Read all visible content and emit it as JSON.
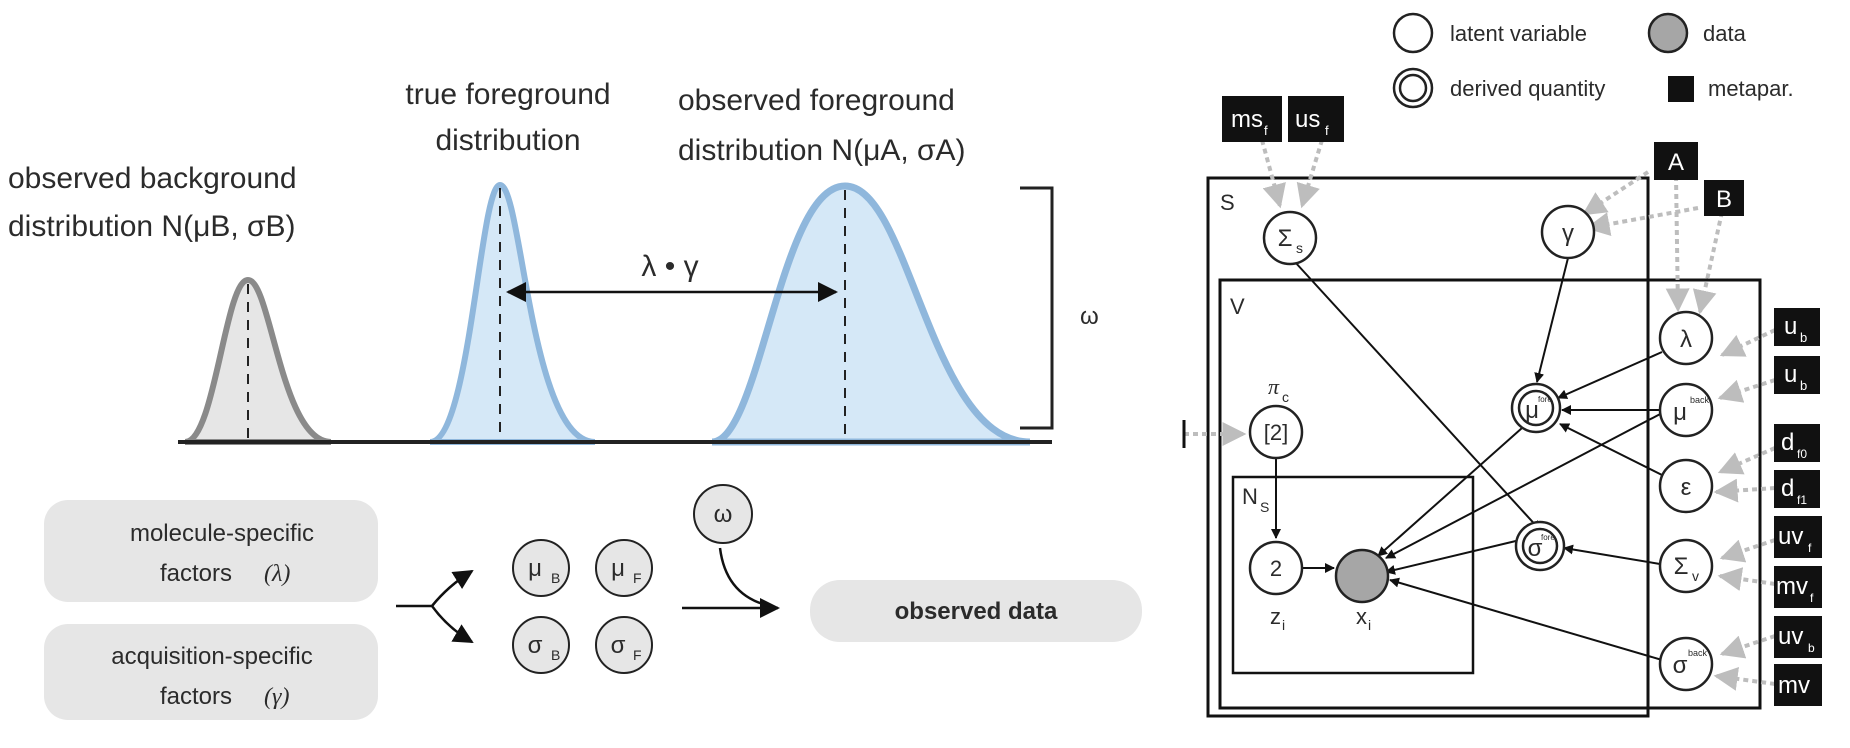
{
  "left_panel": {
    "background_label_line1": "observed background",
    "background_label_line2": "distribution N(μB, σB)",
    "true_fg_label_line1": "true foreground",
    "true_fg_label_line2": "distribution",
    "obs_fg_label_line1": "observed foreground",
    "obs_fg_label_line2": "distribution N(μA, σA)",
    "shift_label": "λ • γ",
    "omega_label": "ω",
    "molecule_line1": "molecule-specific",
    "molecule_line2": "factors",
    "molecule_symbol": "(λ)",
    "acquisition_line1": "acquisition-specific",
    "acquisition_line2": "factors",
    "acquisition_symbol": "(γ)",
    "param_mu": "μ",
    "param_sigma": "σ",
    "sub_B": "B",
    "sub_F": "F",
    "omega_node": "ω",
    "observed_data": "observed data"
  },
  "legend": {
    "latent": "latent variable",
    "data": "data",
    "derived": "derived quantity",
    "metapar": "metapar."
  },
  "graph": {
    "plate_S": "S",
    "plate_V": "V",
    "plate_N": "N",
    "plate_N_sub": "S",
    "sigma_s": "Σ",
    "sigma_s_sub": "s",
    "gamma": "γ",
    "lambda": "λ",
    "epsilon": "ε",
    "mu": "μ",
    "fore": "fore",
    "back": "back",
    "sigma": "σ",
    "sigma_v": "Σ",
    "sigma_v_sub": "v",
    "pi": "π",
    "pi_sub": "c",
    "pi_node": "[2]",
    "z_node": "2",
    "z_label": "z",
    "x_label": "x",
    "index_i": "i",
    "meta_ms": "ms",
    "meta_us": "us",
    "sub_f": "f",
    "meta_A": "A",
    "meta_B": "B",
    "meta_u": "u",
    "sub_b": "b",
    "meta_d": "d",
    "sub_f0": "f0",
    "sub_f1": "f1",
    "meta_uv": "uv",
    "meta_mv": "mv"
  },
  "colors": {
    "gray_fill": "#e6e6e6",
    "gray_stroke": "#8a8a8a",
    "blue_fill": "#d5e8f7",
    "blue_stroke": "#8fb7dc",
    "data_fill": "#a6a6a6",
    "arrow_gray": "#bdbdbd"
  }
}
